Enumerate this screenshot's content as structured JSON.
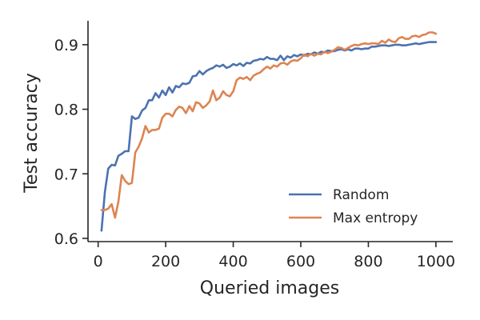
{
  "chart_data": {
    "type": "line",
    "title": "",
    "xlabel": "Queried images",
    "ylabel": "Test accuracy",
    "xlim": [
      -30,
      1050
    ],
    "ylim": [
      0.595,
      0.937
    ],
    "xticks": [
      0,
      200,
      400,
      600,
      800,
      1000
    ],
    "yticks": [
      0.6,
      0.7,
      0.8,
      0.9
    ],
    "grid": false,
    "legend_position": "lower-right",
    "series": [
      {
        "name": "Random",
        "color": "#4c72b0",
        "x": [
          10,
          20,
          30,
          40,
          50,
          60,
          70,
          80,
          90,
          100,
          110,
          120,
          130,
          140,
          150,
          160,
          170,
          180,
          190,
          200,
          210,
          220,
          230,
          240,
          250,
          260,
          270,
          280,
          290,
          300,
          310,
          320,
          330,
          340,
          350,
          360,
          370,
          380,
          390,
          400,
          410,
          420,
          430,
          440,
          450,
          460,
          470,
          480,
          490,
          500,
          510,
          520,
          530,
          540,
          550,
          560,
          570,
          580,
          590,
          600,
          610,
          620,
          630,
          640,
          650,
          660,
          670,
          680,
          690,
          700,
          710,
          720,
          730,
          740,
          750,
          760,
          770,
          780,
          790,
          800,
          810,
          820,
          830,
          840,
          850,
          860,
          870,
          880,
          890,
          900,
          910,
          920,
          930,
          940,
          950,
          960,
          970,
          980,
          990,
          1000
        ],
        "y": [
          0.612,
          0.672,
          0.708,
          0.714,
          0.713,
          0.728,
          0.731,
          0.735,
          0.735,
          0.789,
          0.785,
          0.787,
          0.798,
          0.802,
          0.814,
          0.814,
          0.825,
          0.818,
          0.829,
          0.822,
          0.834,
          0.826,
          0.836,
          0.834,
          0.84,
          0.839,
          0.841,
          0.851,
          0.852,
          0.859,
          0.854,
          0.859,
          0.862,
          0.864,
          0.868,
          0.866,
          0.869,
          0.864,
          0.866,
          0.87,
          0.868,
          0.871,
          0.867,
          0.872,
          0.871,
          0.875,
          0.876,
          0.878,
          0.877,
          0.881,
          0.878,
          0.878,
          0.876,
          0.883,
          0.876,
          0.882,
          0.88,
          0.884,
          0.882,
          0.885,
          0.883,
          0.886,
          0.885,
          0.888,
          0.886,
          0.889,
          0.888,
          0.891,
          0.89,
          0.89,
          0.892,
          0.893,
          0.891,
          0.893,
          0.891,
          0.894,
          0.894,
          0.893,
          0.894,
          0.894,
          0.897,
          0.897,
          0.898,
          0.899,
          0.899,
          0.898,
          0.899,
          0.9,
          0.9,
          0.899,
          0.899,
          0.9,
          0.901,
          0.902,
          0.901,
          0.902,
          0.903,
          0.904,
          0.904,
          0.904
        ]
      },
      {
        "name": "Max entropy",
        "color": "#dd8452",
        "x": [
          10,
          20,
          30,
          40,
          50,
          60,
          70,
          80,
          90,
          100,
          110,
          120,
          130,
          140,
          150,
          160,
          170,
          180,
          190,
          200,
          210,
          220,
          230,
          240,
          250,
          260,
          270,
          280,
          290,
          300,
          310,
          320,
          330,
          340,
          350,
          360,
          370,
          380,
          390,
          400,
          410,
          420,
          430,
          440,
          450,
          460,
          470,
          480,
          490,
          500,
          510,
          520,
          530,
          540,
          550,
          560,
          570,
          580,
          590,
          600,
          610,
          620,
          630,
          640,
          650,
          660,
          670,
          680,
          690,
          700,
          710,
          720,
          730,
          740,
          750,
          760,
          770,
          780,
          790,
          800,
          810,
          820,
          830,
          840,
          850,
          860,
          870,
          880,
          890,
          900,
          910,
          920,
          930,
          940,
          950,
          960,
          970,
          980,
          990,
          1000
        ],
        "y": [
          0.644,
          0.644,
          0.646,
          0.653,
          0.632,
          0.657,
          0.698,
          0.689,
          0.684,
          0.686,
          0.733,
          0.742,
          0.755,
          0.774,
          0.764,
          0.768,
          0.768,
          0.77,
          0.787,
          0.793,
          0.793,
          0.789,
          0.799,
          0.804,
          0.802,
          0.794,
          0.805,
          0.797,
          0.811,
          0.809,
          0.802,
          0.806,
          0.812,
          0.829,
          0.814,
          0.818,
          0.828,
          0.822,
          0.82,
          0.828,
          0.845,
          0.849,
          0.847,
          0.85,
          0.845,
          0.852,
          0.855,
          0.857,
          0.862,
          0.866,
          0.863,
          0.868,
          0.866,
          0.871,
          0.872,
          0.869,
          0.874,
          0.876,
          0.875,
          0.879,
          0.885,
          0.882,
          0.886,
          0.883,
          0.886,
          0.885,
          0.889,
          0.887,
          0.889,
          0.892,
          0.896,
          0.895,
          0.892,
          0.895,
          0.898,
          0.9,
          0.899,
          0.901,
          0.902,
          0.901,
          0.902,
          0.902,
          0.901,
          0.906,
          0.903,
          0.908,
          0.905,
          0.904,
          0.91,
          0.912,
          0.909,
          0.909,
          0.913,
          0.914,
          0.912,
          0.915,
          0.916,
          0.919,
          0.919,
          0.917
        ]
      }
    ]
  }
}
